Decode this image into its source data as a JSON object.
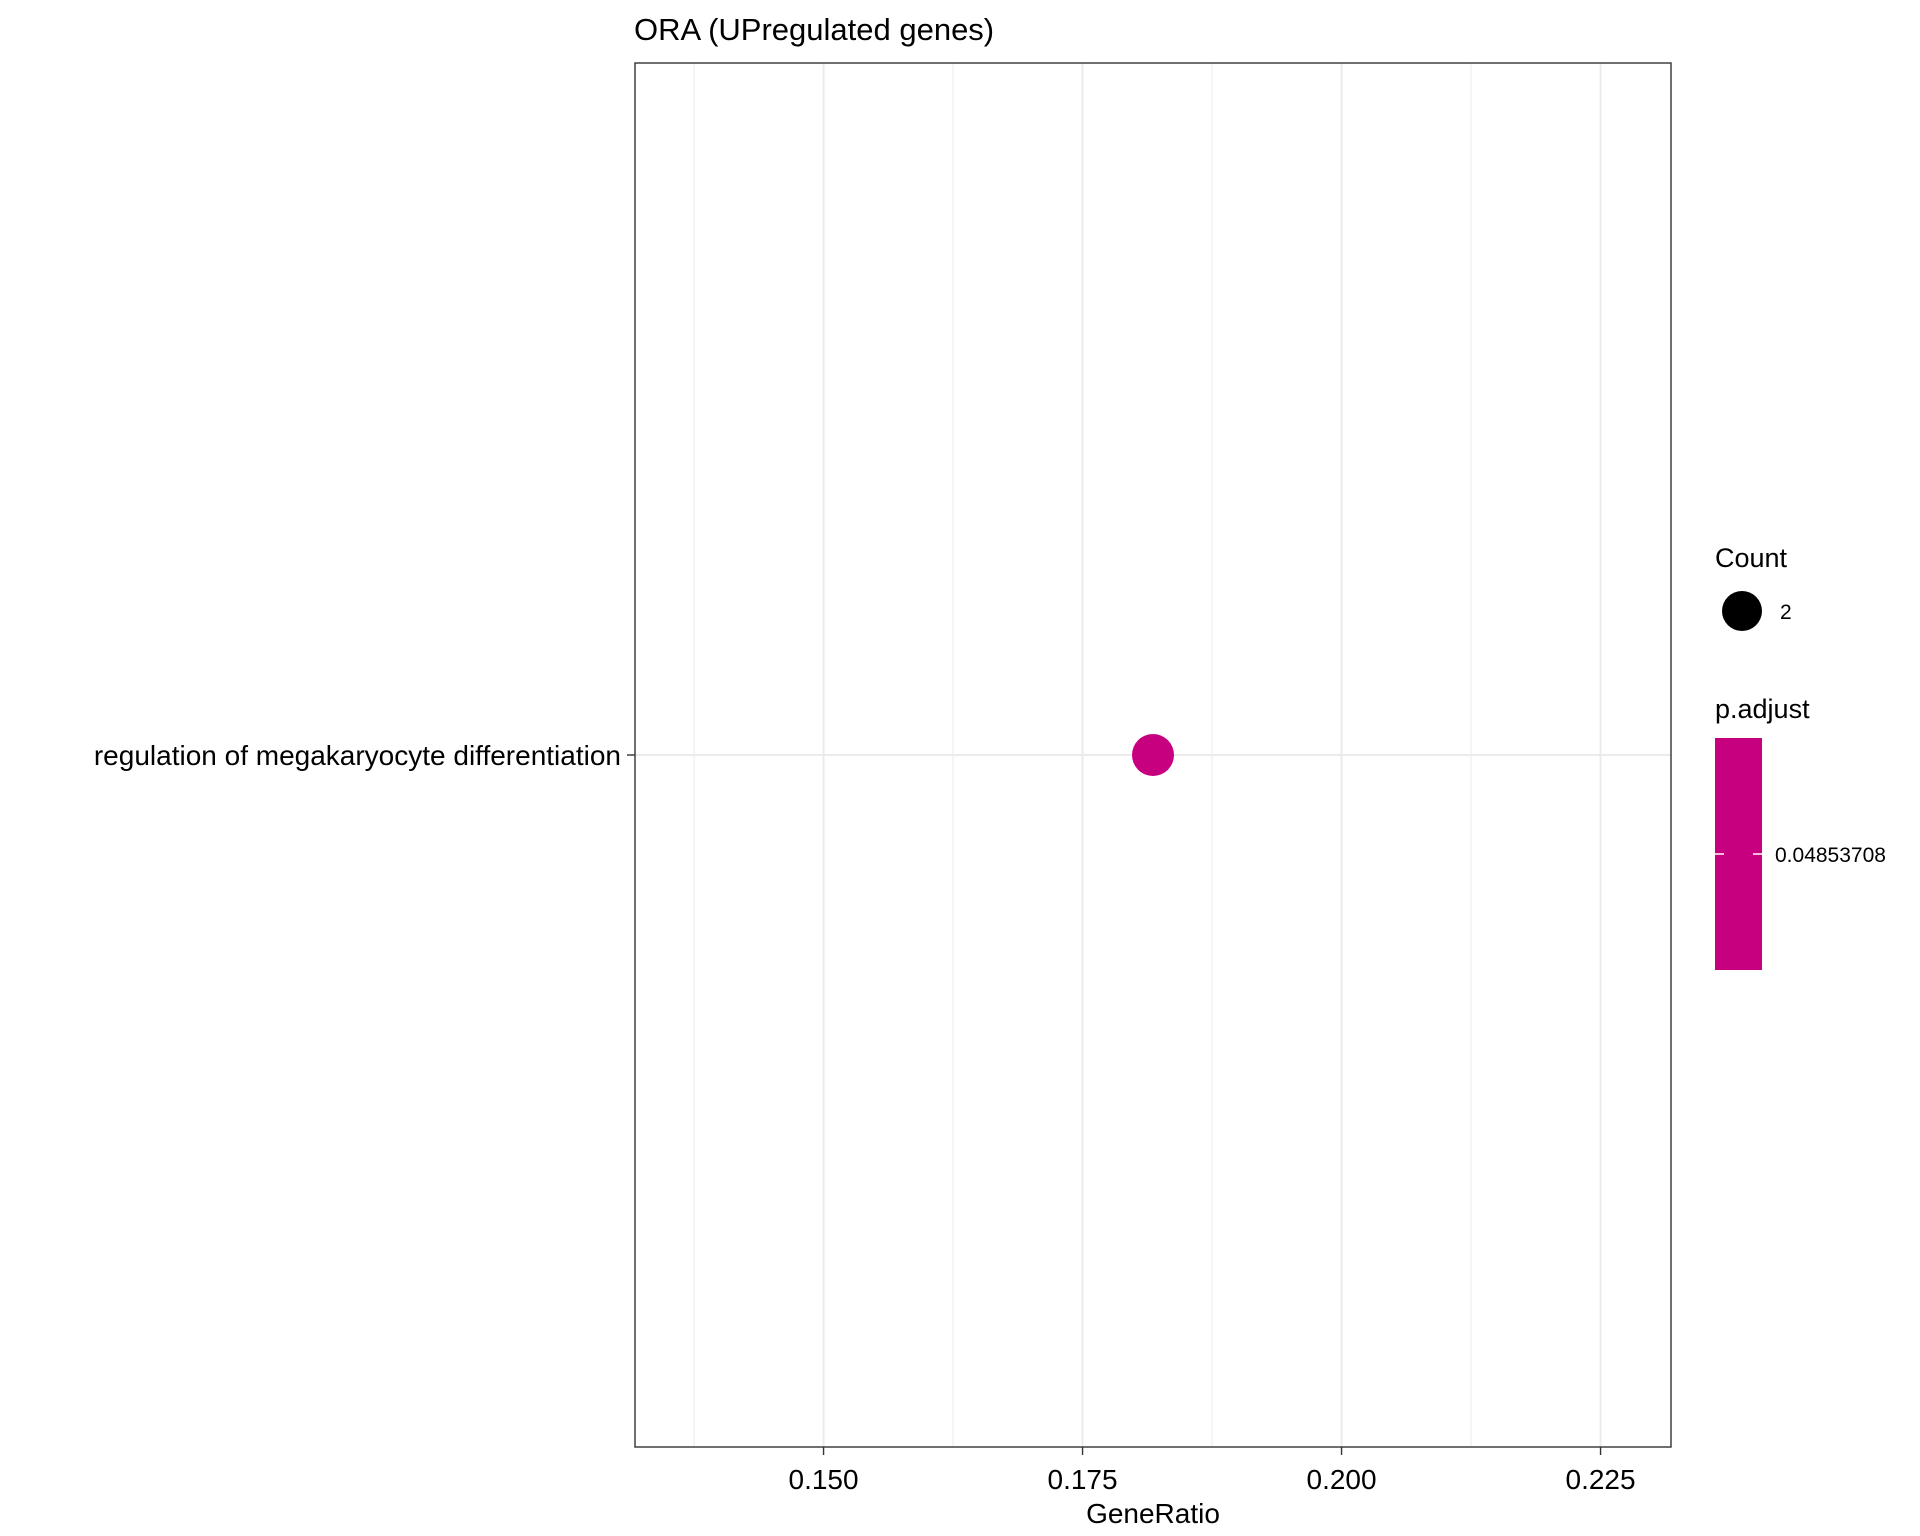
{
  "chart_data": {
    "type": "scatter",
    "title": "ORA (UPregulated genes)",
    "xlabel": "GeneRatio",
    "ylabel": "",
    "xlim": [
      0.1318,
      0.2318
    ],
    "x_ticks": [
      0.15,
      0.175,
      0.2,
      0.225
    ],
    "x_tick_labels": [
      "0.150",
      "0.175",
      "0.200",
      "0.225"
    ],
    "categories": [
      "regulation of megakaryocyte differentiation"
    ],
    "grid": true,
    "points": [
      {
        "category": "regulation of megakaryocyte differentiation",
        "x": 0.1818,
        "count": 2,
        "p_adjust": 0.04853708
      }
    ],
    "legends": {
      "size": {
        "title": "Count",
        "labels": [
          "2"
        ],
        "values": [
          2
        ]
      },
      "color": {
        "title": "p.adjust",
        "labels": [
          "0.04853708"
        ],
        "values": [
          0.04853708
        ],
        "color": "#C6007F"
      }
    },
    "legend_position": "right"
  }
}
